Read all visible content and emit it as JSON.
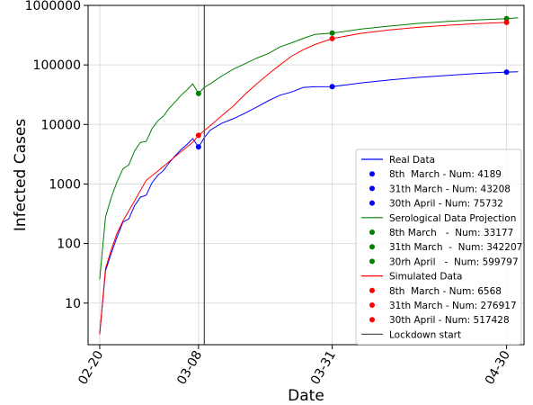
{
  "chart_data": {
    "type": "line",
    "title": "",
    "xlabel": "Date",
    "ylabel": "Infected Cases",
    "y_scale": "log",
    "ylim": [
      2,
      1000000
    ],
    "xlim": [
      "2020-02-18",
      "2020-05-03"
    ],
    "grid": true,
    "legend_position": "lower-right",
    "x_ticks": [
      {
        "date": "2020-02-20",
        "label": "02-20"
      },
      {
        "date": "2020-03-08",
        "label": "03-08"
      },
      {
        "date": "2020-03-31",
        "label": "03-31"
      },
      {
        "date": "2020-04-30",
        "label": "04-30"
      }
    ],
    "y_ticks": [
      {
        "value": 10,
        "label": "10"
      },
      {
        "value": 100,
        "label": "100"
      },
      {
        "value": 1000,
        "label": "1000"
      },
      {
        "value": 10000,
        "label": "10000"
      },
      {
        "value": 100000,
        "label": "100000"
      },
      {
        "value": 1000000,
        "label": "1000000"
      }
    ],
    "lockdown_start": {
      "date": "2020-03-09",
      "label": "Lockdown start",
      "color": "#555555"
    },
    "series": [
      {
        "name": "Real Data",
        "color": "#0000ff",
        "x": [
          "2020-02-20",
          "2020-02-21",
          "2020-02-22",
          "2020-02-23",
          "2020-02-24",
          "2020-02-25",
          "2020-02-26",
          "2020-02-27",
          "2020-02-28",
          "2020-02-29",
          "2020-03-01",
          "2020-03-02",
          "2020-03-03",
          "2020-03-04",
          "2020-03-05",
          "2020-03-06",
          "2020-03-07",
          "2020-03-08",
          "2020-03-09",
          "2020-03-10",
          "2020-03-12",
          "2020-03-14",
          "2020-03-16",
          "2020-03-18",
          "2020-03-20",
          "2020-03-22",
          "2020-03-24",
          "2020-03-26",
          "2020-03-28",
          "2020-03-31",
          "2020-04-05",
          "2020-04-10",
          "2020-04-15",
          "2020-04-20",
          "2020-04-25",
          "2020-04-30",
          "2020-05-02"
        ],
        "y": [
          3,
          35,
          70,
          130,
          230,
          260,
          430,
          600,
          650,
          1050,
          1400,
          1700,
          2300,
          3000,
          3800,
          4600,
          5800,
          4189,
          6000,
          8000,
          10500,
          12500,
          15500,
          19500,
          25000,
          31000,
          35000,
          42000,
          43000,
          43208,
          50000,
          56000,
          62000,
          67000,
          72000,
          75732,
          77000
        ]
      },
      {
        "name": "Serological Data Projection",
        "color": "#008000",
        "x": [
          "2020-02-20",
          "2020-02-21",
          "2020-02-22",
          "2020-02-23",
          "2020-02-24",
          "2020-02-25",
          "2020-02-26",
          "2020-02-27",
          "2020-02-28",
          "2020-02-29",
          "2020-03-01",
          "2020-03-02",
          "2020-03-03",
          "2020-03-04",
          "2020-03-05",
          "2020-03-06",
          "2020-03-07",
          "2020-03-08",
          "2020-03-09",
          "2020-03-10",
          "2020-03-12",
          "2020-03-14",
          "2020-03-16",
          "2020-03-18",
          "2020-03-20",
          "2020-03-22",
          "2020-03-24",
          "2020-03-26",
          "2020-03-28",
          "2020-03-31",
          "2020-04-05",
          "2020-04-10",
          "2020-04-15",
          "2020-04-20",
          "2020-04-25",
          "2020-04-30",
          "2020-05-02"
        ],
        "y": [
          25,
          280,
          600,
          1100,
          1800,
          2100,
          3600,
          5000,
          5200,
          8500,
          11500,
          14000,
          19000,
          24000,
          31000,
          38000,
          48000,
          33177,
          42000,
          48000,
          65000,
          85000,
          105000,
          130000,
          155000,
          200000,
          235000,
          280000,
          325000,
          342207,
          400000,
          450000,
          500000,
          540000,
          570000,
          599797,
          620000
        ]
      },
      {
        "name": "Simulated Data",
        "color": "#ff0000",
        "x": [
          "2020-02-20",
          "2020-02-21",
          "2020-02-22",
          "2020-02-23",
          "2020-02-24",
          "2020-02-26",
          "2020-02-28",
          "2020-03-01",
          "2020-03-03",
          "2020-03-05",
          "2020-03-07",
          "2020-03-08",
          "2020-03-10",
          "2020-03-12",
          "2020-03-14",
          "2020-03-16",
          "2020-03-18",
          "2020-03-20",
          "2020-03-22",
          "2020-03-24",
          "2020-03-26",
          "2020-03-28",
          "2020-03-31",
          "2020-04-05",
          "2020-04-10",
          "2020-04-15",
          "2020-04-20",
          "2020-04-25",
          "2020-04-30"
        ],
        "y": [
          3,
          38,
          80,
          150,
          240,
          520,
          1150,
          1650,
          2400,
          3500,
          5000,
          6568,
          9500,
          14000,
          20500,
          32000,
          48000,
          70000,
          100000,
          140000,
          180000,
          220000,
          276917,
          340000,
          390000,
          430000,
          465000,
          495000,
          517428
        ]
      }
    ],
    "highlight_points": [
      {
        "series": "Real Data",
        "color": "#0000ff",
        "date": "2020-03-08",
        "value": 4189,
        "label": "8th  March - Num: 4189"
      },
      {
        "series": "Real Data",
        "color": "#0000ff",
        "date": "2020-03-31",
        "value": 43208,
        "label": "31th March - Num: 43208"
      },
      {
        "series": "Real Data",
        "color": "#0000ff",
        "date": "2020-04-30",
        "value": 75732,
        "label": "30th April - Num: 75732"
      },
      {
        "series": "Serological Data Projection",
        "color": "#008000",
        "date": "2020-03-08",
        "value": 33177,
        "label": "8th March   -  Num: 33177"
      },
      {
        "series": "Serological Data Projection",
        "color": "#008000",
        "date": "2020-03-31",
        "value": 342207,
        "label": "31th March  -  Num: 342207"
      },
      {
        "series": "Serological Data Projection",
        "color": "#008000",
        "date": "2020-04-30",
        "value": 599797,
        "label": "30rh April   -  Num: 599797"
      },
      {
        "series": "Simulated Data",
        "color": "#ff0000",
        "date": "2020-03-08",
        "value": 6568,
        "label": "8th  March - Num: 6568"
      },
      {
        "series": "Simulated Data",
        "color": "#ff0000",
        "date": "2020-03-31",
        "value": 276917,
        "label": "31th March - Num: 276917"
      },
      {
        "series": "Simulated Data",
        "color": "#ff0000",
        "date": "2020-04-30",
        "value": 517428,
        "label": "30th April - Num: 517428"
      }
    ],
    "legend": [
      {
        "kind": "line",
        "color": "#0000ff",
        "label": "Real Data"
      },
      {
        "kind": "dot",
        "color": "#0000ff",
        "label": "8th  March - Num: 4189"
      },
      {
        "kind": "dot",
        "color": "#0000ff",
        "label": "31th March - Num: 43208"
      },
      {
        "kind": "dot",
        "color": "#0000ff",
        "label": "30th April - Num: 75732"
      },
      {
        "kind": "line",
        "color": "#008000",
        "label": "Serological Data Projection"
      },
      {
        "kind": "dot",
        "color": "#008000",
        "label": "8th March   -  Num: 33177"
      },
      {
        "kind": "dot",
        "color": "#008000",
        "label": "31th March  -  Num: 342207"
      },
      {
        "kind": "dot",
        "color": "#008000",
        "label": "30rh April   -  Num: 599797"
      },
      {
        "kind": "line",
        "color": "#ff0000",
        "label": "Simulated Data"
      },
      {
        "kind": "dot",
        "color": "#ff0000",
        "label": "8th  March - Num: 6568"
      },
      {
        "kind": "dot",
        "color": "#ff0000",
        "label": "31th March - Num: 276917"
      },
      {
        "kind": "dot",
        "color": "#ff0000",
        "label": "30th April - Num: 517428"
      },
      {
        "kind": "line",
        "color": "#555555",
        "label": "Lockdown start"
      }
    ]
  }
}
